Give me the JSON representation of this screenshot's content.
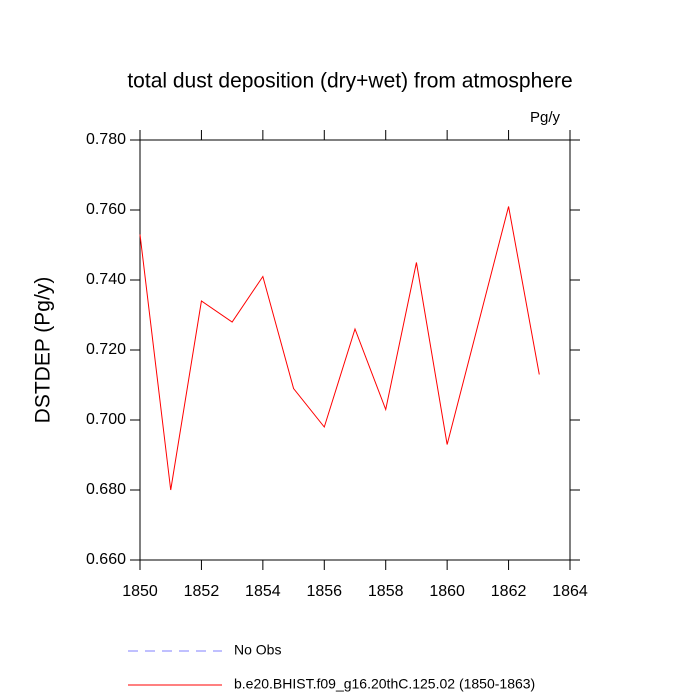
{
  "chart_data": {
    "type": "line",
    "title": "total dust deposition (dry+wet) from atmosphere",
    "units": "Pg/y",
    "y_label": "DSTDEP  (Pg/y)",
    "x": [
      1850,
      1851,
      1852,
      1853,
      1854,
      1855,
      1856,
      1857,
      1858,
      1859,
      1860,
      1861,
      1862,
      1863
    ],
    "series": [
      {
        "name": "b.e20.BHIST.f09_g16.20thC.125.02 (1850-1863)",
        "color": "#ff0000",
        "values": [
          0.753,
          0.68,
          0.734,
          0.728,
          0.741,
          0.709,
          0.698,
          0.726,
          0.703,
          0.745,
          0.693,
          0.727,
          0.761,
          0.713
        ]
      }
    ],
    "reference": {
      "name": "No Obs",
      "color": "#8080ff",
      "dashed": true
    },
    "xlim": [
      1850,
      1864
    ],
    "xticks": [
      1850,
      1852,
      1854,
      1856,
      1858,
      1860,
      1862,
      1864
    ],
    "ylim": [
      0.66,
      0.78
    ],
    "yticks": [
      {
        "value": 0.66,
        "label": "0.660"
      },
      {
        "value": 0.68,
        "label": "0.680"
      },
      {
        "value": 0.7,
        "label": "0.700"
      },
      {
        "value": 0.72,
        "label": "0.720"
      },
      {
        "value": 0.74,
        "label": "0.740"
      },
      {
        "value": 0.76,
        "label": "0.760"
      },
      {
        "value": 0.78,
        "label": "0.780"
      }
    ],
    "grid": false
  }
}
